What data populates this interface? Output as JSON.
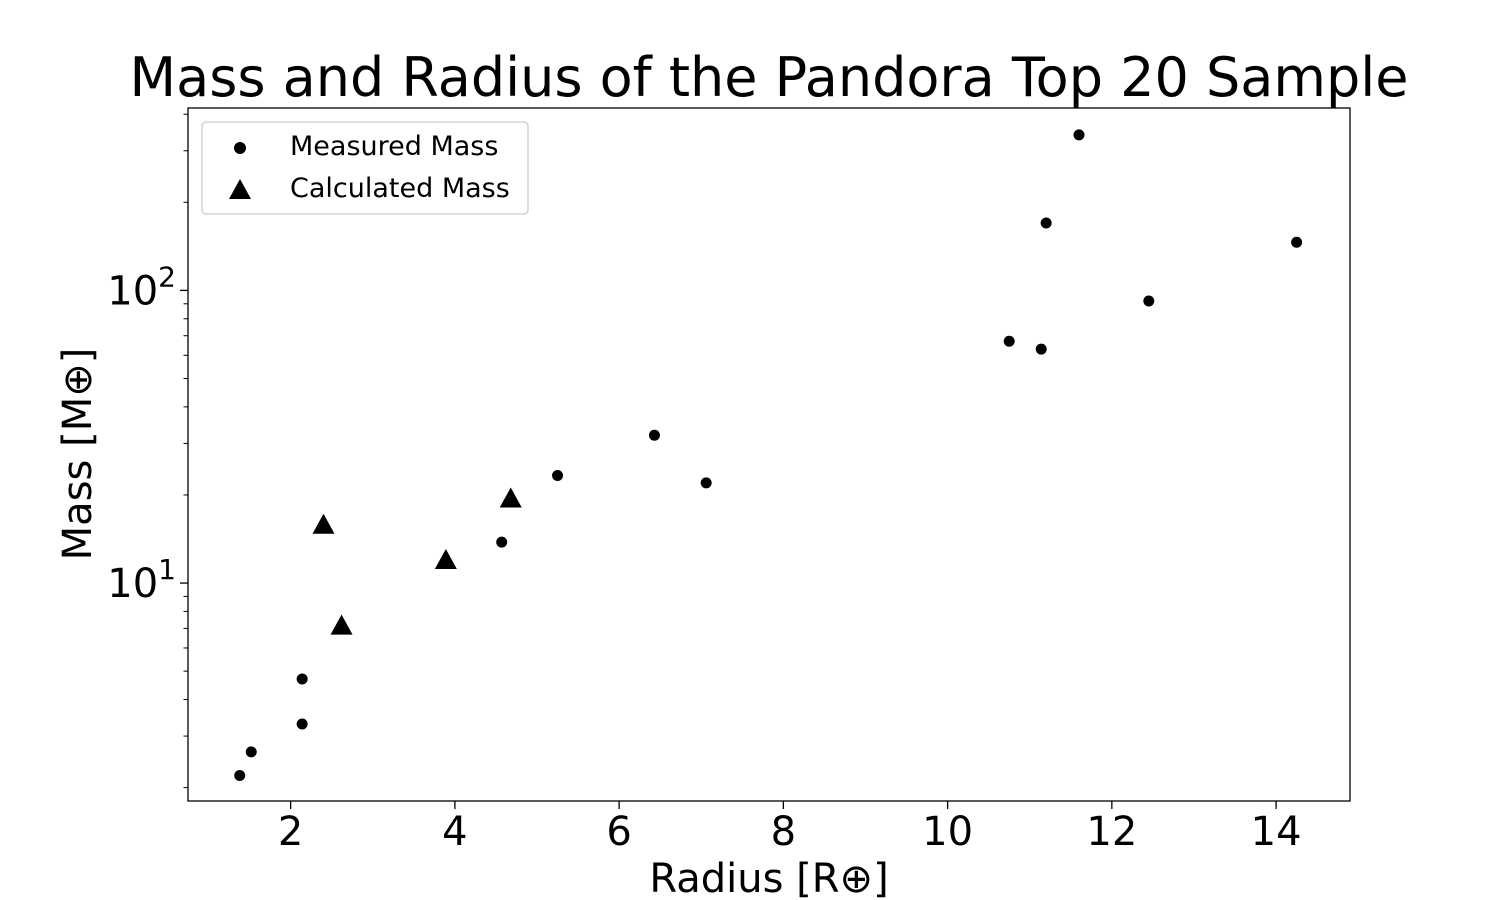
{
  "chart_data": {
    "type": "scatter",
    "title": "Mass and Radius of the Pandora Top 20 Sample",
    "xlabel": "Radius [R⊕]",
    "ylabel": "Mass [M⊕]",
    "xlim": [
      0.75,
      14.9
    ],
    "ylim": [
      1.8,
      420
    ],
    "yscale": "log",
    "grid": false,
    "legend_position": "top-left",
    "x_ticks": [
      {
        "value": 2,
        "label": "2"
      },
      {
        "value": 4,
        "label": "4"
      },
      {
        "value": 6,
        "label": "6"
      },
      {
        "value": 8,
        "label": "8"
      },
      {
        "value": 10,
        "label": "10"
      },
      {
        "value": 12,
        "label": "12"
      },
      {
        "value": 14,
        "label": "14"
      }
    ],
    "y_major_ticks": [
      {
        "value": 10,
        "base": "10",
        "exponent": "1"
      },
      {
        "value": 100,
        "base": "10",
        "exponent": "2"
      }
    ],
    "y_minor_ticks": [
      2,
      3,
      4,
      5,
      6,
      7,
      8,
      9,
      20,
      30,
      40,
      50,
      60,
      70,
      80,
      90,
      200,
      300,
      400
    ],
    "series": [
      {
        "name": "Measured Mass",
        "marker": "circle",
        "color": "#000000",
        "points": [
          {
            "x": 1.38,
            "y": 2.2
          },
          {
            "x": 1.52,
            "y": 2.65
          },
          {
            "x": 2.14,
            "y": 3.3
          },
          {
            "x": 2.14,
            "y": 4.7
          },
          {
            "x": 4.57,
            "y": 13.8
          },
          {
            "x": 5.25,
            "y": 23.3
          },
          {
            "x": 6.43,
            "y": 32.0
          },
          {
            "x": 7.06,
            "y": 22.0
          },
          {
            "x": 10.75,
            "y": 67.0
          },
          {
            "x": 11.14,
            "y": 63.0
          },
          {
            "x": 11.2,
            "y": 170.0
          },
          {
            "x": 11.6,
            "y": 340.0
          },
          {
            "x": 12.45,
            "y": 92.0
          },
          {
            "x": 14.25,
            "y": 146.0
          }
        ]
      },
      {
        "name": "Calculated Mass",
        "marker": "triangle",
        "color": "#000000",
        "points": [
          {
            "x": 2.4,
            "y": 15.7
          },
          {
            "x": 2.62,
            "y": 7.1
          },
          {
            "x": 3.89,
            "y": 11.9
          },
          {
            "x": 4.68,
            "y": 19.3
          }
        ]
      }
    ]
  }
}
